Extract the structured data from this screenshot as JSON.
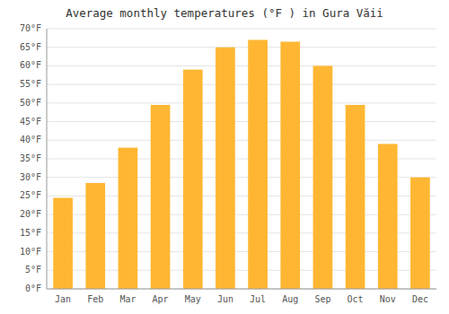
{
  "chart_data": {
    "type": "bar",
    "title": "Average monthly temperatures (°F ) in Gura Văii",
    "categories": [
      "Jan",
      "Feb",
      "Mar",
      "Apr",
      "May",
      "Jun",
      "Jul",
      "Aug",
      "Sep",
      "Oct",
      "Nov",
      "Dec"
    ],
    "values": [
      24.5,
      28.5,
      38.0,
      49.5,
      59.0,
      65.0,
      67.0,
      66.5,
      60.0,
      49.5,
      39.0,
      30.0
    ],
    "color": "#FFB733",
    "ylim": [
      0,
      70
    ],
    "yticks": [
      {
        "value": 0,
        "label": "0°F"
      },
      {
        "value": 5,
        "label": "5°F"
      },
      {
        "value": 10,
        "label": "10°F"
      },
      {
        "value": 15,
        "label": "15°F"
      },
      {
        "value": 20,
        "label": "20°F"
      },
      {
        "value": 25,
        "label": "25°F"
      },
      {
        "value": 30,
        "label": "30°F"
      },
      {
        "value": 35,
        "label": "35°F"
      },
      {
        "value": 40,
        "label": "40°F"
      },
      {
        "value": 45,
        "label": "45°F"
      },
      {
        "value": 50,
        "label": "50°F"
      },
      {
        "value": 55,
        "label": "55°F"
      },
      {
        "value": 60,
        "label": "60°F"
      },
      {
        "value": 65,
        "label": "65°F"
      },
      {
        "value": 70,
        "label": "70°F"
      }
    ],
    "grid": true
  }
}
